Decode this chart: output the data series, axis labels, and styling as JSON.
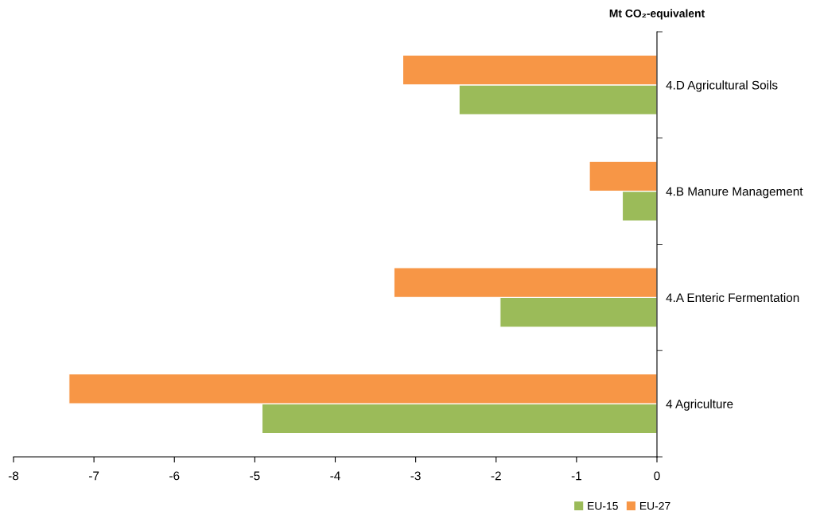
{
  "chart_data": {
    "type": "bar",
    "orientation": "horizontal",
    "title": "Mt CO₂-equivalent",
    "categories": [
      "4.D Agricultural Soils",
      "4.B Manure Management",
      "4.A Enteric Fermentation",
      "4 Agriculture"
    ],
    "series": [
      {
        "name": "EU-15",
        "color": "#9bbb59",
        "values": [
          -2.46,
          -0.43,
          -1.95,
          -4.91
        ]
      },
      {
        "name": "EU-27",
        "color": "#f79646",
        "values": [
          -3.16,
          -0.84,
          -3.27,
          -7.31
        ]
      }
    ],
    "xlim": [
      -8,
      0
    ],
    "xticks": [
      -8,
      -7,
      -6,
      -5,
      -4,
      -3,
      -2,
      -1,
      0
    ],
    "grid": false,
    "legend": "bottom right"
  }
}
